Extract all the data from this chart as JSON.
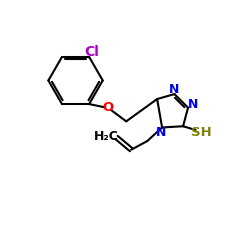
{
  "bg_color": "#ffffff",
  "bond_color": "#000000",
  "N_color": "#0000ee",
  "O_color": "#ff0000",
  "Cl_color": "#aa00cc",
  "S_color": "#808000",
  "lw": 1.5,
  "fs": 9,
  "xlim": [
    0,
    10
  ],
  "ylim": [
    0,
    10
  ]
}
